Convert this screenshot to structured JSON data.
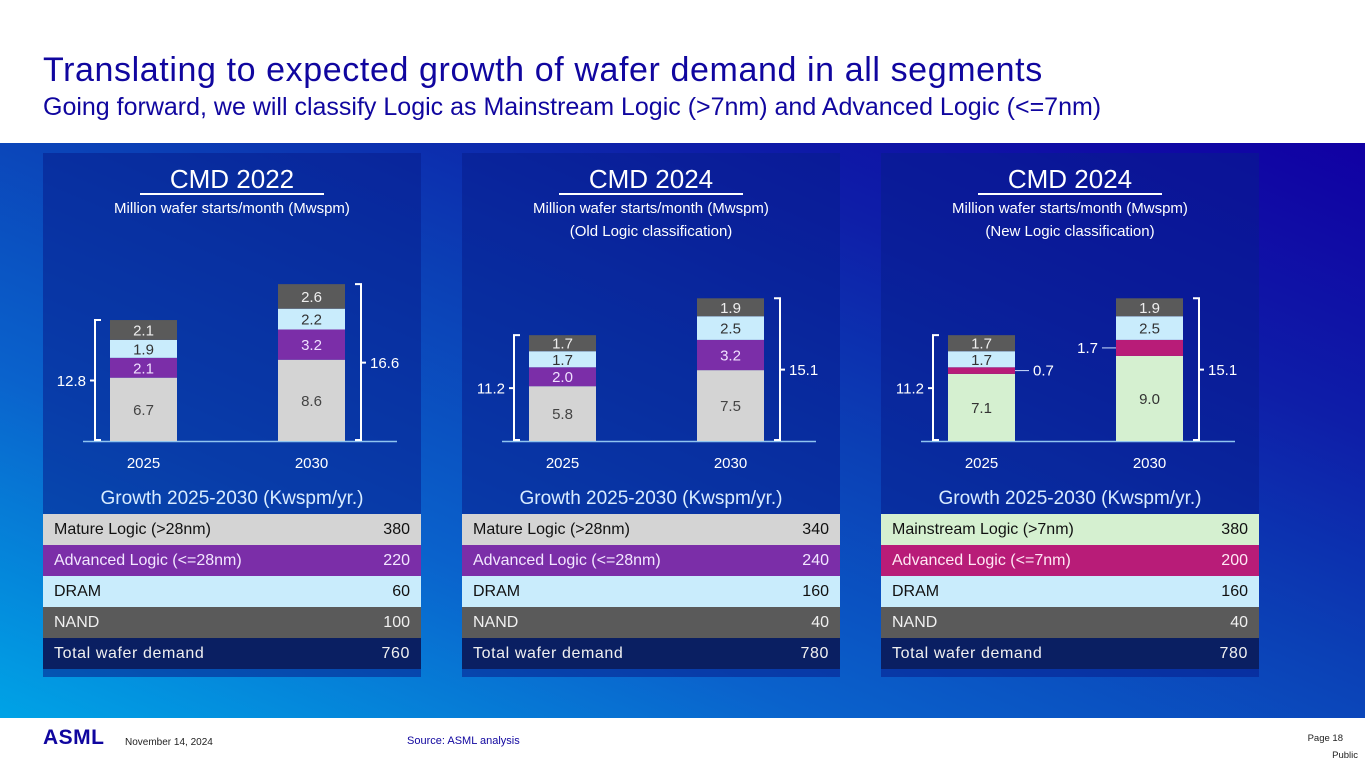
{
  "header": {
    "title": "Translating to expected growth of wafer demand in all segments",
    "subtitle": "Going forward, we will classify Logic as Mainstream Logic (>7nm) and Advanced Logic (<=7nm)"
  },
  "colors": {
    "title": "#10069f",
    "mature_logic": "#d4d4d4",
    "mainstream_logic": "#d5f0d0",
    "advanced_logic_28": "#7b2ea8",
    "advanced_logic_7": "#b81c78",
    "dram": "#c9ecfc",
    "nand": "#5a5a5a",
    "total": "#0a1f62"
  },
  "panels": [
    {
      "title": "CMD 2022",
      "subtitle_lines": [
        "Million wafer starts/month (Mwspm)"
      ],
      "growth_title": "Growth 2025-2030 (Kwspm/yr.)",
      "table": [
        {
          "label": "Mature Logic (>28nm)",
          "value": "380",
          "kind": "mature_logic"
        },
        {
          "label": "Advanced Logic (<=28nm)",
          "value": "220",
          "kind": "advanced_logic_28"
        },
        {
          "label": "DRAM",
          "value": "60",
          "kind": "dram"
        },
        {
          "label": "NAND",
          "value": "100",
          "kind": "nand"
        },
        {
          "label": "Total wafer demand",
          "value": "760",
          "kind": "total"
        }
      ]
    },
    {
      "title": "CMD 2024",
      "subtitle_lines": [
        "Million wafer starts/month (Mwspm)",
        "(Old Logic classification)"
      ],
      "growth_title": "Growth 2025-2030 (Kwspm/yr.)",
      "table": [
        {
          "label": "Mature Logic (>28nm)",
          "value": "340",
          "kind": "mature_logic"
        },
        {
          "label": "Advanced Logic (<=28nm)",
          "value": "240",
          "kind": "advanced_logic_28"
        },
        {
          "label": "DRAM",
          "value": "160",
          "kind": "dram"
        },
        {
          "label": "NAND",
          "value": "40",
          "kind": "nand"
        },
        {
          "label": "Total wafer demand",
          "value": "780",
          "kind": "total"
        }
      ]
    },
    {
      "title": "CMD 2024",
      "subtitle_lines": [
        "Million wafer starts/month (Mwspm)",
        "(New Logic classification)"
      ],
      "growth_title": "Growth 2025-2030 (Kwspm/yr.)",
      "table": [
        {
          "label": "Mainstream Logic (>7nm)",
          "value": "380",
          "kind": "mainstream_logic"
        },
        {
          "label": "Advanced Logic (<=7nm)",
          "value": "200",
          "kind": "advanced_logic_7"
        },
        {
          "label": "DRAM",
          "value": "160",
          "kind": "dram"
        },
        {
          "label": "NAND",
          "value": "40",
          "kind": "nand"
        },
        {
          "label": "Total wafer demand",
          "value": "780",
          "kind": "total"
        }
      ]
    }
  ],
  "chart_data": [
    {
      "type": "bar",
      "stacked": true,
      "title": "CMD 2022",
      "ylabel": "Million wafer starts/month (Mwspm)",
      "categories": [
        "2025",
        "2030"
      ],
      "series": [
        {
          "name": "Mature Logic (>28nm)",
          "kind": "mature_logic",
          "values": [
            6.7,
            8.6
          ]
        },
        {
          "name": "Advanced Logic (<=28nm)",
          "kind": "advanced_logic_28",
          "values": [
            2.1,
            3.2
          ]
        },
        {
          "name": "DRAM",
          "kind": "dram",
          "values": [
            1.9,
            2.2
          ]
        },
        {
          "name": "NAND",
          "kind": "nand",
          "values": [
            2.1,
            2.6
          ]
        }
      ],
      "totals": [
        12.8,
        16.6
      ],
      "ylim": [
        0,
        17
      ],
      "grid": false
    },
    {
      "type": "bar",
      "stacked": true,
      "title": "CMD 2024 (Old Logic classification)",
      "ylabel": "Million wafer starts/month (Mwspm)",
      "categories": [
        "2025",
        "2030"
      ],
      "series": [
        {
          "name": "Mature Logic (>28nm)",
          "kind": "mature_logic",
          "values": [
            5.8,
            7.5
          ]
        },
        {
          "name": "Advanced Logic (<=28nm)",
          "kind": "advanced_logic_28",
          "values": [
            2.0,
            3.2
          ]
        },
        {
          "name": "DRAM",
          "kind": "dram",
          "values": [
            1.7,
            2.5
          ]
        },
        {
          "name": "NAND",
          "kind": "nand",
          "values": [
            1.7,
            1.9
          ]
        }
      ],
      "totals": [
        11.2,
        15.1
      ],
      "ylim": [
        0,
        17
      ],
      "grid": false
    },
    {
      "type": "bar",
      "stacked": true,
      "title": "CMD 2024 (New Logic classification)",
      "ylabel": "Million wafer starts/month (Mwspm)",
      "categories": [
        "2025",
        "2030"
      ],
      "series": [
        {
          "name": "Mainstream Logic (>7nm)",
          "kind": "mainstream_logic",
          "values": [
            7.1,
            9.0
          ]
        },
        {
          "name": "Advanced Logic (<=7nm)",
          "kind": "advanced_logic_7",
          "values": [
            0.7,
            1.7
          ],
          "label_outside": true
        },
        {
          "name": "DRAM",
          "kind": "dram",
          "values": [
            1.7,
            2.5
          ]
        },
        {
          "name": "NAND",
          "kind": "nand",
          "values": [
            1.7,
            1.9
          ]
        }
      ],
      "totals": [
        11.2,
        15.1
      ],
      "ylim": [
        0,
        17
      ],
      "grid": false
    }
  ],
  "footer": {
    "logo": "ASML",
    "date": "November 14, 2024",
    "source": "Source: ASML analysis",
    "page": "Page 18",
    "classification": "Public"
  }
}
